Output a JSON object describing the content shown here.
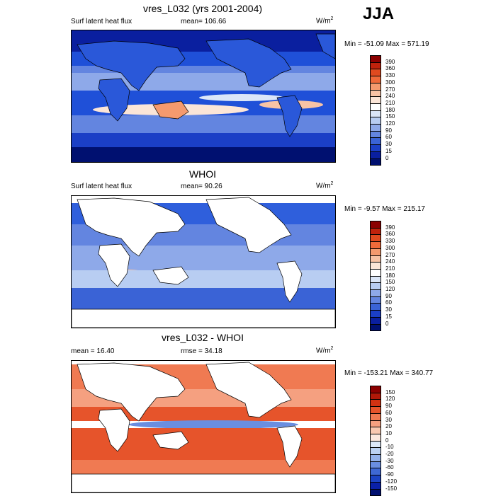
{
  "season": "JJA",
  "panels": [
    {
      "title": "vres_L032 (yrs 2001-2004)",
      "left_label": "Surf latent heat flux",
      "mid_label": "mean= 106.66",
      "units": "W/m",
      "units_sup": "2",
      "minmax": "Min = -51.09 Max = 571.19",
      "ocean_base": "#1f50d8",
      "land_fill": true,
      "colorbar_levels": [
        "390",
        "360",
        "330",
        "300",
        "270",
        "240",
        "210",
        "180",
        "150",
        "120",
        "90",
        "60",
        "30",
        "15",
        "0"
      ],
      "colorbar_colors": [
        "#8b0000",
        "#c0220c",
        "#e04a1f",
        "#f06a3a",
        "#f59a6e",
        "#f8c3a5",
        "#fbe5d7",
        "#ffffff",
        "#dbe6f8",
        "#b8cdf2",
        "#8ea9e9",
        "#6385e0",
        "#3a63d6",
        "#1b3fc6",
        "#0a1f9f",
        "#001070"
      ]
    },
    {
      "title": "WHOI",
      "left_label": "Surf latent heat flux",
      "mid_label": "mean=  90.26",
      "units": "W/m",
      "units_sup": "2",
      "minmax": "Min =  -9.57 Max = 215.17",
      "ocean_base": "#2f5fdc",
      "land_fill": false,
      "colorbar_levels": [
        "390",
        "360",
        "330",
        "300",
        "270",
        "240",
        "210",
        "180",
        "150",
        "120",
        "90",
        "60",
        "30",
        "15",
        "0"
      ],
      "colorbar_colors": [
        "#8b0000",
        "#c0220c",
        "#e04a1f",
        "#f06a3a",
        "#f59a6e",
        "#f8c3a5",
        "#fbe5d7",
        "#ffffff",
        "#dbe6f8",
        "#b8cdf2",
        "#8ea9e9",
        "#6385e0",
        "#3a63d6",
        "#1b3fc6",
        "#0a1f9f",
        "#001070"
      ]
    },
    {
      "title": "vres_L032 - WHOI",
      "left_label": "mean =  16.40",
      "mid_label": "rmse =  34.18",
      "units": "W/m",
      "units_sup": "2",
      "minmax": "Min = -153.21 Max = 340.77",
      "ocean_base": "#e8643c",
      "land_fill": false,
      "colorbar_levels": [
        "150",
        "120",
        "90",
        "60",
        "30",
        "20",
        "10",
        "0",
        "-10",
        "-20",
        "-30",
        "-60",
        "-90",
        "-120",
        "-150"
      ],
      "colorbar_colors": [
        "#8b0000",
        "#b01808",
        "#d23212",
        "#e6542b",
        "#f07a52",
        "#f5a080",
        "#f8c8b0",
        "#fbe8de",
        "#dce8f8",
        "#bcd2f2",
        "#94b2ea",
        "#6a8ee0",
        "#3f68d4",
        "#1c43c4",
        "#0a20a8",
        "#001070"
      ]
    }
  ]
}
